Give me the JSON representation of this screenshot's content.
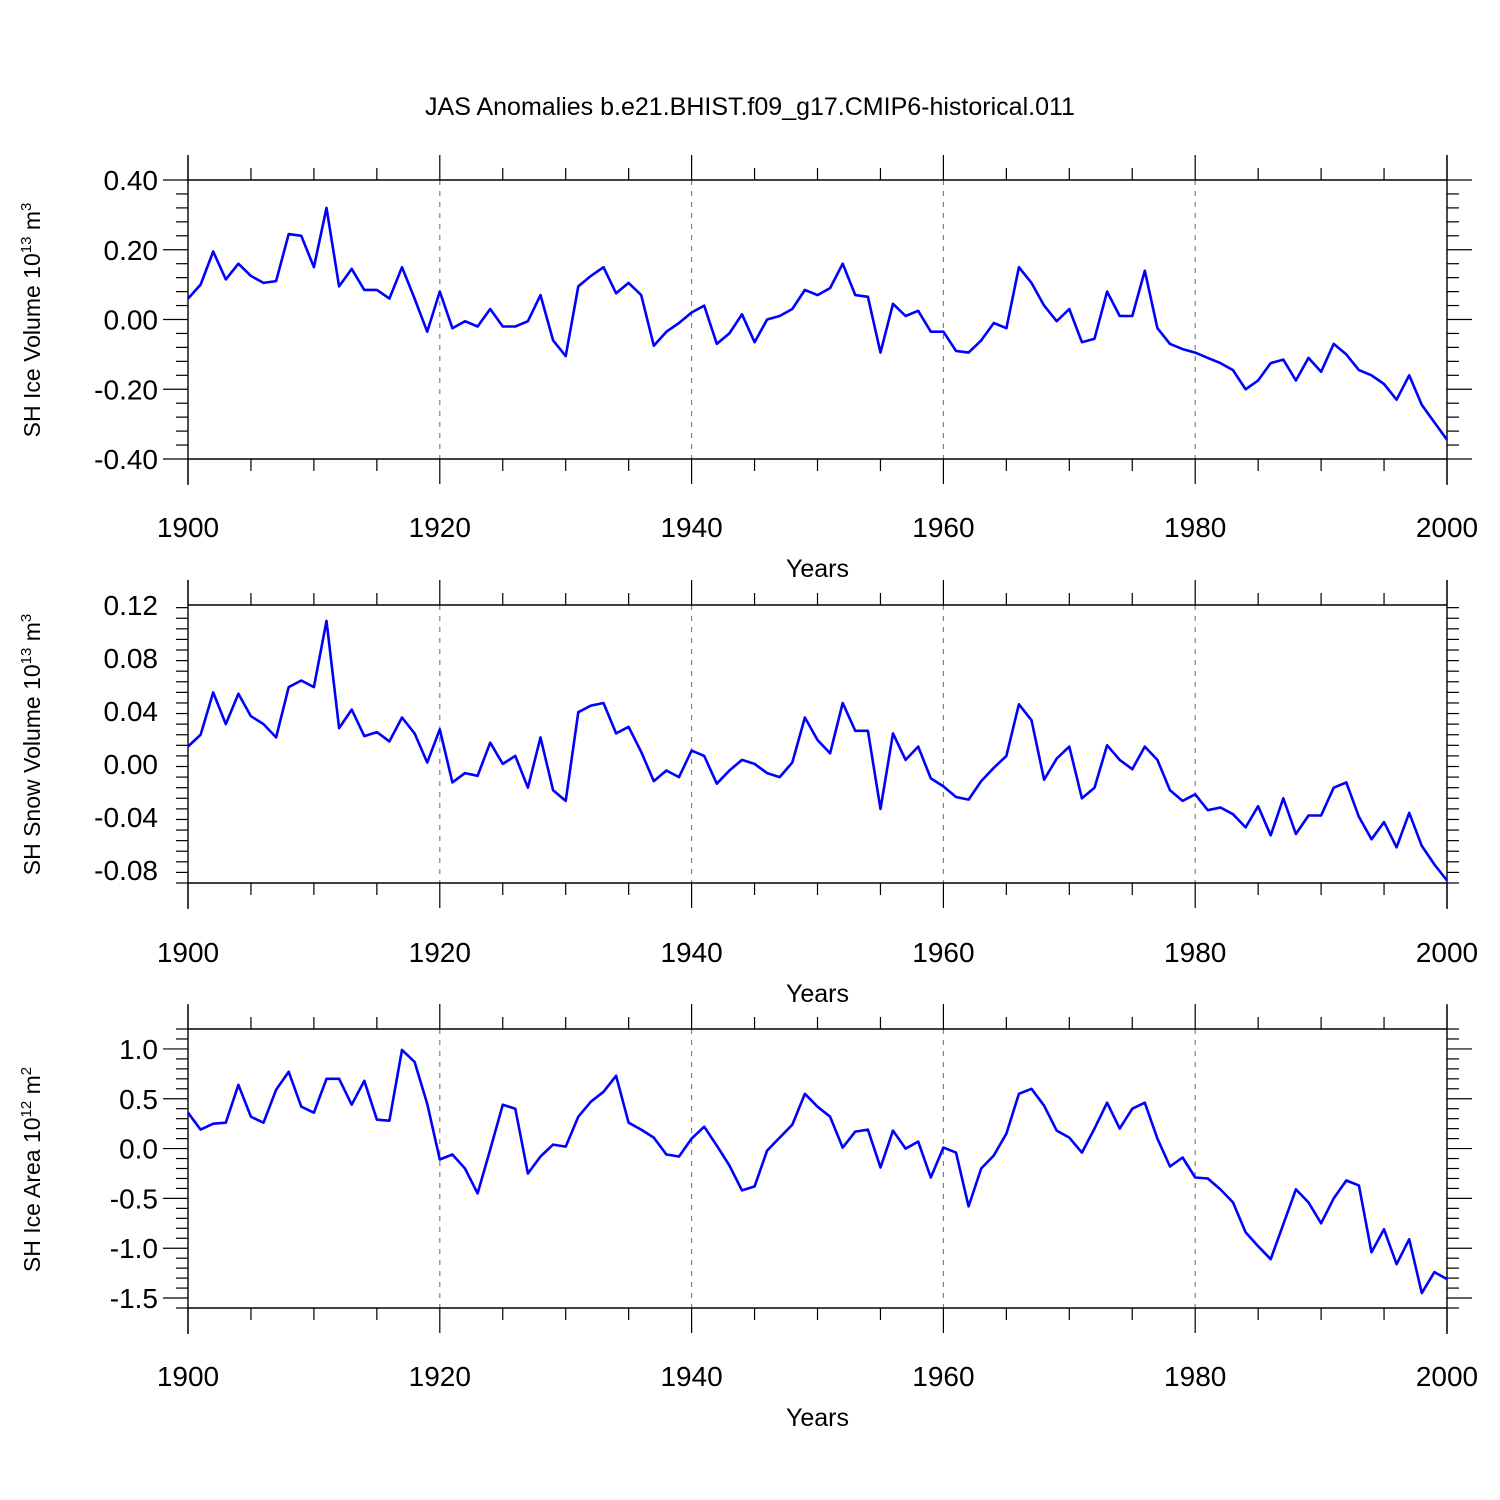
{
  "title": "JAS Anomalies b.e21.BHIST.f09_g17.CMIP6-historical.011",
  "line_color": "#0000ff",
  "grid_color": "#808080",
  "chart_data": [
    {
      "type": "line",
      "ylabel_main": "SH Ice Volume 10",
      "ylabel_exp": "13",
      "ylabel_unit": " m",
      "ylabel_unit_exp": "3",
      "xlabel": "Years",
      "xlim": [
        1900,
        2000
      ],
      "ylim": [
        -0.4,
        0.4
      ],
      "xticks": [
        1900,
        1920,
        1940,
        1960,
        1980,
        2000
      ],
      "yticks": [
        -0.4,
        -0.2,
        0.0,
        0.2,
        0.4
      ],
      "ytick_labels": [
        "-0.40",
        "-0.20",
        "0.00",
        "0.20",
        "0.40"
      ],
      "vgrid": [
        1920,
        1940,
        1960,
        1980
      ],
      "series": [
        {
          "x_start": 1900,
          "values": [
            0.06,
            0.1,
            0.195,
            0.115,
            0.16,
            0.125,
            0.105,
            0.11,
            0.245,
            0.24,
            0.15,
            0.32,
            0.095,
            0.145,
            0.085,
            0.085,
            0.06,
            0.15,
            0.06,
            -0.035,
            0.08,
            -0.025,
            -0.005,
            -0.02,
            0.03,
            -0.02,
            -0.02,
            -0.005,
            0.07,
            -0.06,
            -0.105,
            0.095,
            0.125,
            0.15,
            0.075,
            0.105,
            0.07,
            -0.075,
            -0.035,
            -0.01,
            0.02,
            0.04,
            -0.07,
            -0.04,
            0.015,
            -0.065,
            0.0,
            0.01,
            0.03,
            0.085,
            0.07,
            0.09,
            0.16,
            0.07,
            0.065,
            -0.095,
            0.045,
            0.01,
            0.025,
            -0.035,
            -0.035,
            -0.09,
            -0.095,
            -0.06,
            -0.01,
            -0.025,
            0.15,
            0.105,
            0.04,
            -0.005,
            0.03,
            -0.065,
            -0.055,
            0.08,
            0.01,
            0.01,
            0.14,
            -0.025,
            -0.07,
            -0.085,
            -0.095,
            -0.11,
            -0.125,
            -0.145,
            -0.2,
            -0.175,
            -0.125,
            -0.115,
            -0.175,
            -0.11,
            -0.15,
            -0.07,
            -0.1,
            -0.145,
            -0.16,
            -0.185,
            -0.23,
            -0.16,
            -0.245,
            -0.295,
            -0.345
          ]
        }
      ]
    },
    {
      "type": "line",
      "ylabel_main": "SH Snow Volume 10",
      "ylabel_exp": "13",
      "ylabel_unit": " m",
      "ylabel_unit_exp": "3",
      "xlabel": "Years",
      "xlim": [
        1900,
        2000
      ],
      "ylim": [
        -0.09,
        0.12
      ],
      "xticks": [
        1900,
        1920,
        1940,
        1960,
        1980,
        2000
      ],
      "yticks": [
        -0.08,
        -0.04,
        0.0,
        0.04,
        0.08,
        0.12
      ],
      "ytick_labels": [
        "-0.08",
        "-0.04",
        "0.00",
        "0.04",
        "0.08",
        "0.12"
      ],
      "vgrid": [
        1920,
        1940,
        1960,
        1980
      ],
      "series": [
        {
          "x_start": 1900,
          "values": [
            0.013,
            0.022,
            0.054,
            0.03,
            0.053,
            0.036,
            0.03,
            0.02,
            0.058,
            0.063,
            0.058,
            0.108,
            0.027,
            0.041,
            0.021,
            0.024,
            0.017,
            0.035,
            0.023,
            0.001,
            0.026,
            -0.014,
            -0.007,
            -0.009,
            0.016,
            0.0,
            0.006,
            -0.018,
            0.02,
            -0.02,
            -0.028,
            0.039,
            0.044,
            0.046,
            0.023,
            0.028,
            0.009,
            -0.013,
            -0.005,
            -0.01,
            0.01,
            0.006,
            -0.015,
            -0.005,
            0.003,
            0.0,
            -0.007,
            -0.01,
            0.001,
            0.035,
            0.018,
            0.008,
            0.046,
            0.025,
            0.025,
            -0.034,
            0.023,
            0.003,
            0.013,
            -0.011,
            -0.017,
            -0.025,
            -0.027,
            -0.013,
            -0.003,
            0.006,
            0.045,
            0.033,
            -0.012,
            0.004,
            0.013,
            -0.026,
            -0.018,
            0.014,
            0.003,
            -0.004,
            0.013,
            0.003,
            -0.02,
            -0.028,
            -0.023,
            -0.035,
            -0.033,
            -0.038,
            -0.048,
            -0.032,
            -0.054,
            -0.026,
            -0.053,
            -0.039,
            -0.039,
            -0.018,
            -0.014,
            -0.04,
            -0.057,
            -0.044,
            -0.063,
            -0.037,
            -0.062,
            -0.076,
            -0.088
          ]
        }
      ]
    },
    {
      "type": "line",
      "ylabel_main": "SH Ice Area 10",
      "ylabel_exp": "12",
      "ylabel_unit": " m",
      "ylabel_unit_exp": "2",
      "xlabel": "Years",
      "xlim": [
        1900,
        2000
      ],
      "ylim": [
        -1.6,
        1.2
      ],
      "xticks": [
        1900,
        1920,
        1940,
        1960,
        1980,
        2000
      ],
      "yticks": [
        -1.5,
        -1.0,
        -0.5,
        0.0,
        0.5,
        1.0
      ],
      "ytick_labels": [
        "-1.5",
        "-1.0",
        "-0.5",
        "0.0",
        "0.5",
        "1.0"
      ],
      "vgrid": [
        1920,
        1940,
        1960,
        1980
      ],
      "series": [
        {
          "x_start": 1900,
          "values": [
            0.36,
            0.19,
            0.25,
            0.26,
            0.64,
            0.32,
            0.26,
            0.59,
            0.77,
            0.42,
            0.36,
            0.7,
            0.7,
            0.44,
            0.68,
            0.29,
            0.28,
            0.99,
            0.87,
            0.45,
            -0.11,
            -0.06,
            -0.2,
            -0.45,
            -0.01,
            0.44,
            0.4,
            -0.25,
            -0.08,
            0.04,
            0.02,
            0.32,
            0.47,
            0.57,
            0.73,
            0.26,
            0.19,
            0.11,
            -0.06,
            -0.08,
            0.1,
            0.22,
            0.03,
            -0.17,
            -0.42,
            -0.38,
            -0.02,
            0.11,
            0.24,
            0.55,
            0.42,
            0.32,
            0.01,
            0.17,
            0.19,
            -0.19,
            0.18,
            0.0,
            0.07,
            -0.29,
            0.01,
            -0.04,
            -0.58,
            -0.2,
            -0.07,
            0.15,
            0.55,
            0.6,
            0.43,
            0.18,
            0.11,
            -0.04,
            0.2,
            0.46,
            0.2,
            0.4,
            0.46,
            0.1,
            -0.18,
            -0.09,
            -0.29,
            -0.3,
            -0.41,
            -0.54,
            -0.84,
            -0.98,
            -1.11,
            -0.76,
            -0.41,
            -0.54,
            -0.75,
            -0.5,
            -0.32,
            -0.37,
            -1.04,
            -0.81,
            -1.16,
            -0.91,
            -1.45,
            -1.24,
            -1.31
          ]
        }
      ]
    }
  ]
}
